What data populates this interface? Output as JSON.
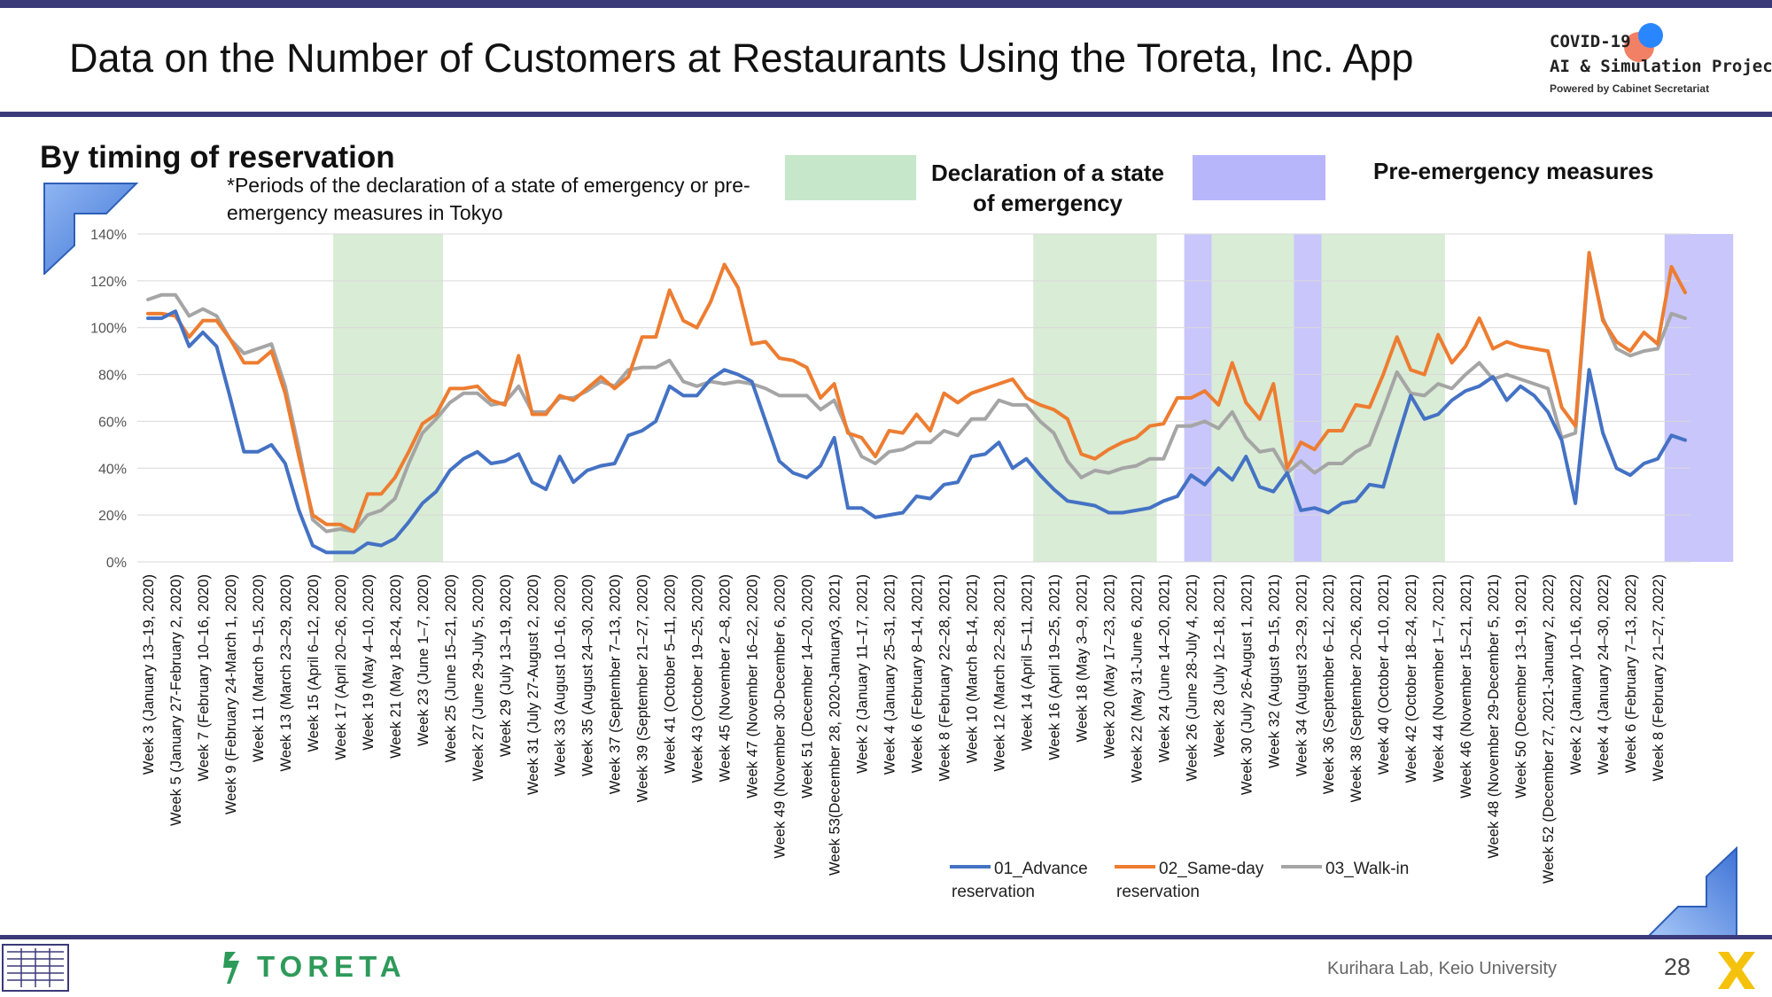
{
  "header": {
    "title": "Data on the Number of Customers at Restaurants Using the Toreta, Inc. App",
    "logo_line1": "COVID-19",
    "logo_line2": "AI & Simulation Project",
    "logo_line3": "Powered by Cabinet Secretariat"
  },
  "section": {
    "subtitle": "By timing of reservation",
    "note": "*Periods of the declaration of a state of emergency or pre-emergency measures in Tokyo",
    "legend_emergency": "Declaration of a state of emergency",
    "legend_pre": "Pre-emergency measures"
  },
  "footer": {
    "brand": "TORETA",
    "lab": "Kurihara Lab, Keio University",
    "page": "28"
  },
  "colors": {
    "advance": "#4472c4",
    "sameday": "#ed7d31",
    "walkin": "#a5a5a5",
    "emergency_band": "#d9ecd5",
    "pre_band": "#c9c6fb",
    "rule": "#3b3a78"
  },
  "chart_data": {
    "type": "line",
    "ylim": [
      0,
      140
    ],
    "yticks": [
      "0%",
      "20%",
      "40%",
      "60%",
      "80%",
      "100%",
      "120%",
      "140%"
    ],
    "ytick_values": [
      0,
      20,
      40,
      60,
      80,
      100,
      120,
      140
    ],
    "grid": true,
    "legend_position": "bottom",
    "x_tick_labels": [
      "Week 3 (January 13–19, 2020)",
      "Week 5 (January 27-February 2, 2020)",
      "Week 7 (February 10–16, 2020)",
      "Week 9 (February 24-March 1, 2020)",
      "Week 11 (March 9–15, 2020)",
      "Week 13 (March 23–29, 2020)",
      "Week 15 (April 6–12, 2020)",
      "Week 17 (April 20–26, 2020)",
      "Week 19 (May 4–10, 2020)",
      "Week 21 (May 18–24, 2020)",
      "Week 23 (June 1–7, 2020)",
      "Week 25 (June 15–21, 2020)",
      "Week 27 (June 29-July 5, 2020)",
      "Week 29 (July 13–19, 2020)",
      "Week 31 (July 27-August 2, 2020)",
      "Week 33 (August 10–16, 2020)",
      "Week 35 (August 24–30, 2020)",
      "Week 37 (September 7–13, 2020)",
      "Week 39 (September 21–27, 2020)",
      "Week 41 (October 5–11, 2020)",
      "Week 43 (October 19–25, 2020)",
      "Week 45 (November 2–8, 2020)",
      "Week 47 (November 16–22, 2020)",
      "Week 49 (November 30-December 6, 2020)",
      "Week 51 (December 14–20, 2020)",
      "Week 53(December 28, 2020-January3, 2021)",
      "Week 2 (January 11–17, 2021)",
      "Week 4 (January 25–31, 2021)",
      "Week 6 (February 8–14, 2021)",
      "Week 8 (February 22–28, 2021)",
      "Week 10 (March 8–14, 2021)",
      "Week 12 (March 22–28, 2021)",
      "Week 14 (April 5–11, 2021)",
      "Week 16 (April 19–25, 2021)",
      "Week 18 (May 3–9, 2021)",
      "Week 20 (May 17–23, 2021)",
      "Week 22 (May 31-June 6, 2021)",
      "Week 24 (June 14–20, 2021)",
      "Week 26 (June 28-July 4, 2021)",
      "Week 28 (July 12–18, 2021)",
      "Week 30 (July 26-August 1, 2021)",
      "Week 32 (August 9–15, 2021)",
      "Week 34 (August 23–29, 2021)",
      "Week 36 (September 6–12, 2021)",
      "Week 38 (September 20–26, 2021)",
      "Week 40 (October 4–10, 2021)",
      "Week 42 (October 18–24, 2021)",
      "Week 44 (November 1–7, 2021)",
      "Week 46 (November 15–21, 2021)",
      "Week 48 (November 29-December 5, 2021)",
      "Week 50 (December 13–19, 2021)",
      "Week 52 (December 27, 2021-January 2, 2022)",
      "Week 2 (January 10–16, 2022)",
      "Week 4 (January 24–30, 2022)",
      "Week 6 (February 7–13, 2022)",
      "Week 8 (February 21–27, 2022)"
    ],
    "bands": [
      {
        "type": "emergency",
        "from_week": 14,
        "to_week": 21
      },
      {
        "type": "emergency",
        "from_week": 65,
        "to_week": 73
      },
      {
        "type": "pre",
        "from_week": 76,
        "to_week": 77
      },
      {
        "type": "emergency",
        "from_week": 78,
        "to_week": 83
      },
      {
        "type": "pre",
        "from_week": 84,
        "to_week": 85
      },
      {
        "type": "emergency",
        "from_week": 86,
        "to_week": 94
      },
      {
        "type": "pre",
        "from_week": 111,
        "to_week": 115
      }
    ],
    "series": [
      {
        "name": "01_Advance reservation",
        "values": [
          104,
          104,
          107,
          92,
          98,
          92,
          70,
          47,
          47,
          50,
          42,
          22,
          7,
          4,
          4,
          4,
          8,
          7,
          10,
          17,
          25,
          30,
          39,
          44,
          47,
          42,
          43,
          46,
          34,
          31,
          45,
          34,
          39,
          41,
          42,
          54,
          56,
          60,
          75,
          71,
          71,
          78,
          82,
          80,
          77,
          60,
          43,
          38,
          36,
          41,
          53,
          23,
          23,
          19,
          20,
          21,
          28,
          27,
          33,
          34,
          45,
          46,
          51,
          40,
          44,
          37,
          31,
          26,
          25,
          24,
          21,
          21,
          22,
          23,
          26,
          28,
          37,
          33,
          40,
          35,
          45,
          32,
          30,
          38,
          22,
          23,
          21,
          25,
          26,
          33,
          32,
          52,
          71,
          61,
          63,
          69,
          73,
          75,
          79,
          69,
          75,
          71,
          64,
          52,
          25,
          82,
          55,
          40,
          37,
          42,
          44,
          54,
          52
        ]
      },
      {
        "name": "02_Same-day reservation",
        "values": [
          106,
          106,
          105,
          96,
          103,
          103,
          95,
          85,
          85,
          90,
          72,
          45,
          20,
          16,
          16,
          13,
          29,
          29,
          36,
          47,
          59,
          63,
          74,
          74,
          75,
          69,
          67,
          88,
          63,
          63,
          71,
          69,
          74,
          79,
          74,
          79,
          96,
          96,
          116,
          103,
          100,
          111,
          127,
          117,
          93,
          94,
          87,
          86,
          83,
          70,
          76,
          55,
          53,
          45,
          56,
          55,
          63,
          56,
          72,
          68,
          72,
          74,
          76,
          78,
          70,
          67,
          65,
          61,
          46,
          44,
          48,
          51,
          53,
          58,
          59,
          70,
          70,
          73,
          67,
          85,
          68,
          61,
          76,
          40,
          51,
          48,
          56,
          56,
          67,
          66,
          80,
          96,
          82,
          80,
          97,
          85,
          92,
          104,
          91,
          94,
          92,
          91,
          90,
          66,
          58,
          132,
          103,
          94,
          90,
          98,
          93,
          126,
          115
        ]
      },
      {
        "name": "03_Walk-in",
        "values": [
          112,
          114,
          114,
          105,
          108,
          105,
          95,
          89,
          91,
          93,
          75,
          48,
          18,
          13,
          14,
          13,
          20,
          22,
          27,
          42,
          55,
          61,
          68,
          72,
          72,
          67,
          68,
          75,
          64,
          64,
          70,
          70,
          73,
          77,
          75,
          82,
          83,
          83,
          86,
          77,
          75,
          77,
          76,
          77,
          76,
          74,
          71,
          71,
          71,
          65,
          69,
          56,
          45,
          42,
          47,
          48,
          51,
          51,
          56,
          54,
          61,
          61,
          69,
          67,
          67,
          60,
          55,
          43,
          36,
          39,
          38,
          40,
          41,
          44,
          44,
          58,
          58,
          60,
          57,
          64,
          53,
          47,
          48,
          38,
          43,
          38,
          42,
          42,
          47,
          50,
          65,
          81,
          72,
          71,
          76,
          74,
          80,
          85,
          78,
          80,
          78,
          76,
          74,
          53,
          55,
          130,
          104,
          91,
          88,
          90,
          91,
          106,
          104
        ]
      }
    ]
  }
}
